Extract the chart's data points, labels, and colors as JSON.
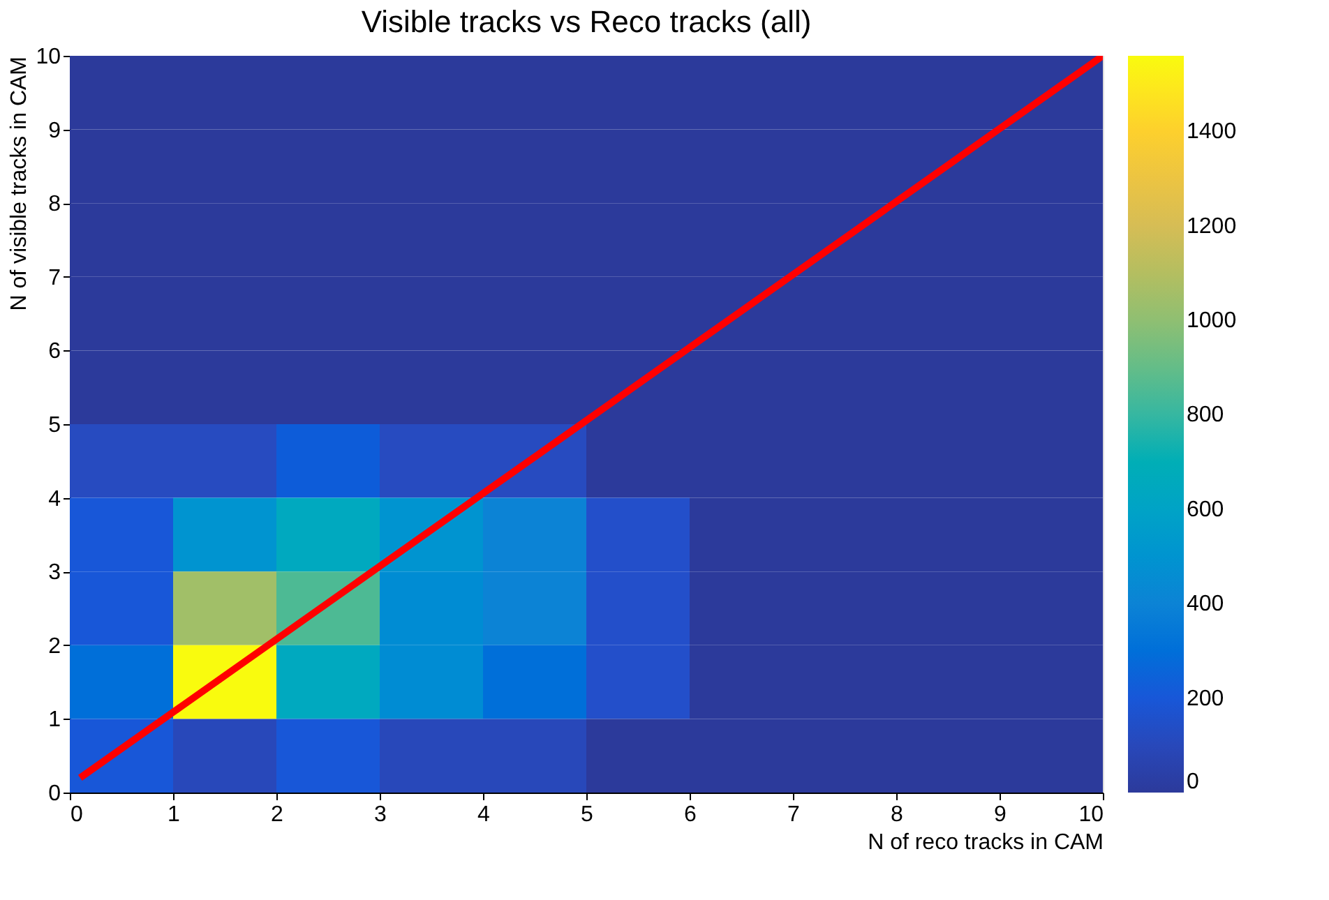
{
  "chart_data": {
    "type": "heatmap",
    "title": "Visible tracks vs Reco tracks (all)",
    "xlabel": "N of reco tracks in CAM",
    "ylabel": "N of visible tracks in CAM",
    "xlim": [
      0,
      10
    ],
    "ylim": [
      0,
      10
    ],
    "xticks": [
      0,
      1,
      2,
      3,
      4,
      5,
      6,
      7,
      8,
      9,
      10
    ],
    "yticks": [
      0,
      1,
      2,
      3,
      4,
      5,
      6,
      7,
      8,
      9,
      10
    ],
    "clim": [
      0,
      1560
    ],
    "cticks": [
      0,
      200,
      400,
      600,
      800,
      1000,
      1200,
      1400
    ],
    "cells": [
      [
        0,
        0,
        0,
        0,
        0,
        0,
        0,
        0,
        0,
        0
      ],
      [
        0,
        0,
        0,
        0,
        0,
        0,
        0,
        0,
        0,
        0
      ],
      [
        0,
        0,
        0,
        0,
        0,
        0,
        0,
        0,
        0,
        0
      ],
      [
        0,
        0,
        0,
        0,
        0,
        0,
        0,
        0,
        0,
        0
      ],
      [
        0,
        0,
        0,
        0,
        0,
        0,
        0,
        0,
        0,
        0
      ],
      [
        120,
        120,
        220,
        120,
        120,
        0,
        0,
        0,
        0,
        0
      ],
      [
        200,
        500,
        650,
        500,
        400,
        150,
        0,
        0,
        0,
        0
      ],
      [
        200,
        1050,
        850,
        450,
        400,
        150,
        0,
        0,
        0,
        0
      ],
      [
        300,
        1560,
        650,
        450,
        300,
        150,
        0,
        0,
        0,
        0
      ],
      [
        200,
        100,
        200,
        100,
        100,
        0,
        0,
        0,
        0,
        0
      ]
    ],
    "series": [
      {
        "type": "line",
        "color": "#ff0000",
        "x": [
          0.1,
          10
        ],
        "values": [
          0.2,
          10
        ]
      }
    ],
    "grid": false
  }
}
